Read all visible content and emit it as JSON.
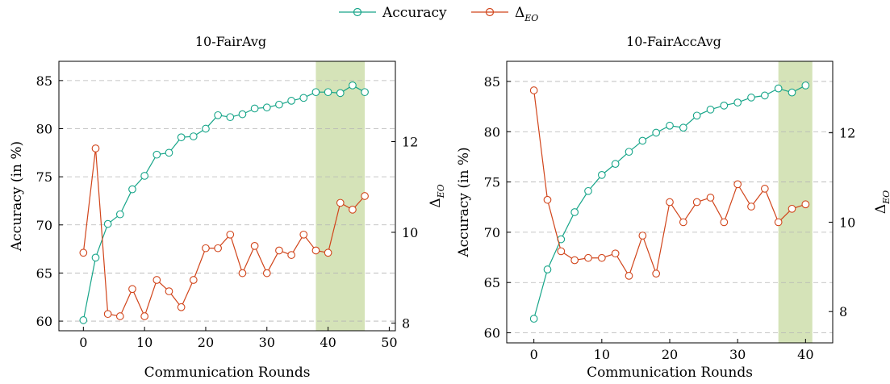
{
  "legend": {
    "accuracy_label": "Accuracy",
    "delta_label": "Δ",
    "delta_sub": "EO"
  },
  "colors": {
    "accuracy": "#17a589",
    "delta": "#d1451b",
    "highlight": "#d5e3b8",
    "grid": "#b5b5b5"
  },
  "chart_data": [
    {
      "type": "line",
      "title": "10-FairAvg",
      "xlabel": "Communication Rounds",
      "ylabel": "Accuracy (in %)",
      "y2label": "Δ_EO",
      "xlim": [
        -4,
        51
      ],
      "ylim": [
        59,
        87
      ],
      "y2lim": [
        7.83,
        13.77
      ],
      "xticks": [
        0,
        10,
        20,
        30,
        40,
        50
      ],
      "yticks": [
        60,
        65,
        70,
        75,
        80,
        85
      ],
      "y2ticks": [
        8,
        10,
        12
      ],
      "grid": "horizontal dashed",
      "highlight_x": [
        38,
        46
      ],
      "series": [
        {
          "name": "Accuracy",
          "axis": "left",
          "x": [
            0,
            2,
            4,
            6,
            8,
            10,
            12,
            14,
            16,
            18,
            20,
            22,
            24,
            26,
            28,
            30,
            32,
            34,
            36,
            38,
            40,
            42,
            44,
            46
          ],
          "values": [
            60.1,
            66.6,
            70.1,
            71.1,
            73.7,
            75.1,
            77.3,
            77.5,
            79.1,
            79.2,
            80.0,
            81.4,
            81.2,
            81.5,
            82.1,
            82.2,
            82.5,
            82.9,
            83.2,
            83.8,
            83.8,
            83.7,
            84.5,
            83.8
          ]
        },
        {
          "name": "Δ_EO",
          "axis": "right",
          "x": [
            0,
            2,
            4,
            6,
            8,
            10,
            12,
            14,
            16,
            18,
            20,
            22,
            24,
            26,
            28,
            30,
            32,
            34,
            36,
            38,
            40,
            42,
            44,
            46
          ],
          "values": [
            9.55,
            11.85,
            8.2,
            8.15,
            8.75,
            8.15,
            8.95,
            8.7,
            8.35,
            8.95,
            9.65,
            9.65,
            9.95,
            9.1,
            9.7,
            9.1,
            9.6,
            9.5,
            9.95,
            9.6,
            9.55,
            10.65,
            10.5,
            10.8
          ]
        }
      ]
    },
    {
      "type": "line",
      "title": "10-FairAccAvg",
      "xlabel": "Communication Rounds",
      "ylabel": "Accuracy (in %)",
      "y2label": "Δ_EO",
      "xlim": [
        -4,
        44
      ],
      "ylim": [
        59,
        87
      ],
      "y2lim": [
        7.3,
        13.6
      ],
      "xticks": [
        0,
        10,
        20,
        30,
        40
      ],
      "yticks": [
        60,
        65,
        70,
        75,
        80,
        85
      ],
      "y2ticks": [
        8,
        10,
        12
      ],
      "grid": "horizontal dashed",
      "highlight_x": [
        36,
        41
      ],
      "series": [
        {
          "name": "Accuracy",
          "axis": "left",
          "x": [
            0,
            2,
            4,
            6,
            8,
            10,
            12,
            14,
            16,
            18,
            20,
            22,
            24,
            26,
            28,
            30,
            32,
            34,
            36,
            38,
            40
          ],
          "values": [
            61.4,
            66.3,
            69.3,
            72.0,
            74.1,
            75.7,
            76.8,
            78.0,
            79.1,
            79.9,
            80.6,
            80.4,
            81.6,
            82.2,
            82.6,
            82.9,
            83.4,
            83.6,
            84.3,
            83.9,
            84.6
          ]
        },
        {
          "name": "Δ_EO",
          "axis": "right",
          "x": [
            0,
            2,
            4,
            6,
            8,
            10,
            12,
            14,
            16,
            18,
            20,
            22,
            24,
            26,
            28,
            30,
            32,
            34,
            36,
            38,
            40
          ],
          "values": [
            12.95,
            10.5,
            9.35,
            9.15,
            9.2,
            9.2,
            9.3,
            8.8,
            9.7,
            8.85,
            10.45,
            10.0,
            10.45,
            10.55,
            10.0,
            10.85,
            10.35,
            10.75,
            10.0,
            10.3,
            10.4
          ]
        }
      ]
    }
  ]
}
